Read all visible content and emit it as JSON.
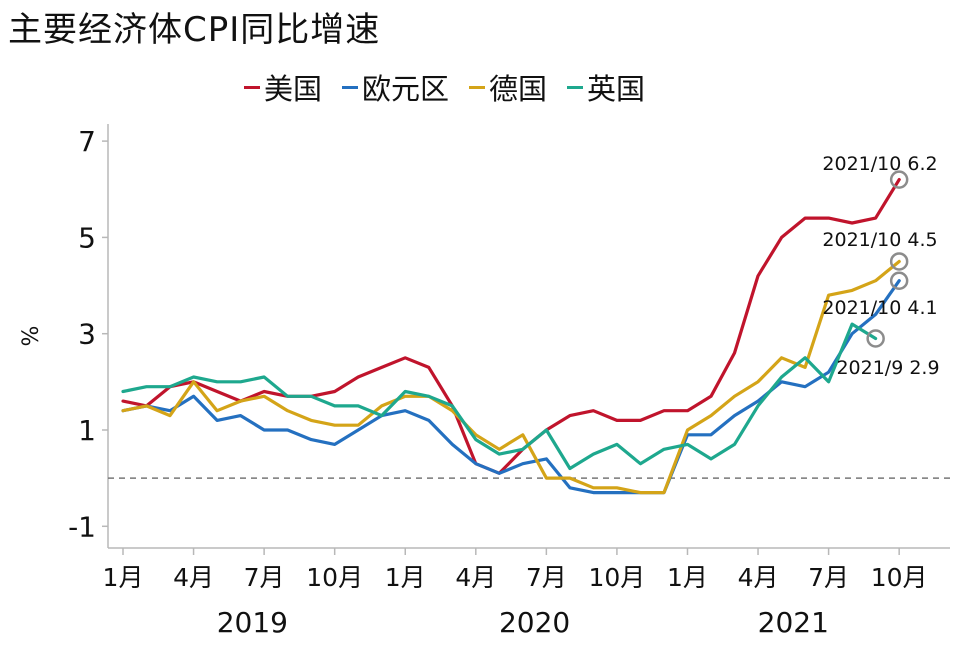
{
  "chart_data": {
    "type": "line",
    "title": "主要经济体CPI同比增速",
    "ylabel": "%",
    "ylim": [
      -2,
      7.8
    ],
    "yticks": [
      7,
      5,
      3,
      1,
      -1
    ],
    "ytick_labels": [
      "7",
      "5",
      "3",
      "1",
      "-1"
    ],
    "xtick_labels": [
      "1月",
      "4月",
      "7月",
      "10月",
      "1月",
      "4月",
      "7月",
      "10月",
      "1月",
      "4月",
      "7月",
      "10月"
    ],
    "year_labels": [
      "2019",
      "2020",
      "2021"
    ],
    "reference_line": 0,
    "legend_position": "top",
    "x": [
      "2019-01",
      "2019-02",
      "2019-03",
      "2019-04",
      "2019-05",
      "2019-06",
      "2019-07",
      "2019-08",
      "2019-09",
      "2019-10",
      "2019-11",
      "2019-12",
      "2020-01",
      "2020-02",
      "2020-03",
      "2020-04",
      "2020-05",
      "2020-06",
      "2020-07",
      "2020-08",
      "2020-09",
      "2020-10",
      "2020-11",
      "2020-12",
      "2021-01",
      "2021-02",
      "2021-03",
      "2021-04",
      "2021-05",
      "2021-06",
      "2021-07",
      "2021-08",
      "2021-09",
      "2021-10"
    ],
    "series": [
      {
        "name": "美国",
        "color": "#c0142c",
        "values": [
          1.6,
          1.5,
          1.9,
          2.0,
          1.8,
          1.6,
          1.8,
          1.7,
          1.7,
          1.8,
          2.1,
          2.3,
          2.5,
          2.3,
          1.5,
          0.3,
          0.1,
          0.6,
          1.0,
          1.3,
          1.4,
          1.2,
          1.2,
          1.4,
          1.4,
          1.7,
          2.6,
          4.2,
          5.0,
          5.4,
          5.4,
          5.3,
          5.4,
          6.2
        ]
      },
      {
        "name": "欧元区",
        "color": "#2470c0",
        "values": [
          1.4,
          1.5,
          1.4,
          1.7,
          1.2,
          1.3,
          1.0,
          1.0,
          0.8,
          0.7,
          1.0,
          1.3,
          1.4,
          1.2,
          0.7,
          0.3,
          0.1,
          0.3,
          0.4,
          -0.2,
          -0.3,
          -0.3,
          -0.3,
          -0.3,
          0.9,
          0.9,
          1.3,
          1.6,
          2.0,
          1.9,
          2.2,
          3.0,
          3.4,
          4.1
        ]
      },
      {
        "name": "德国",
        "color": "#d4a418",
        "values": [
          1.4,
          1.5,
          1.3,
          2.0,
          1.4,
          1.6,
          1.7,
          1.4,
          1.2,
          1.1,
          1.1,
          1.5,
          1.7,
          1.7,
          1.4,
          0.9,
          0.6,
          0.9,
          0.0,
          0.0,
          -0.2,
          -0.2,
          -0.3,
          -0.3,
          1.0,
          1.3,
          1.7,
          2.0,
          2.5,
          2.3,
          3.8,
          3.9,
          4.1,
          4.5
        ]
      },
      {
        "name": "英国",
        "color": "#1ea88e",
        "values": [
          1.8,
          1.9,
          1.9,
          2.1,
          2.0,
          2.0,
          2.1,
          1.7,
          1.7,
          1.5,
          1.5,
          1.3,
          1.8,
          1.7,
          1.5,
          0.8,
          0.5,
          0.6,
          1.0,
          0.2,
          0.5,
          0.7,
          0.3,
          0.6,
          0.7,
          0.4,
          0.7,
          1.5,
          2.1,
          2.5,
          2.0,
          3.2,
          2.9,
          null
        ]
      }
    ],
    "annotations": [
      {
        "series": "美国",
        "x": "2021-10",
        "y": 6.2,
        "label": "2021/10 6.2"
      },
      {
        "series": "德国",
        "x": "2021-10",
        "y": 4.5,
        "label": "2021/10 4.5"
      },
      {
        "series": "欧元区",
        "x": "2021-10",
        "y": 4.1,
        "label": "2021/10 4.1"
      },
      {
        "series": "英国",
        "x": "2021-09",
        "y": 2.9,
        "label": "2021/9 2.9"
      }
    ]
  }
}
